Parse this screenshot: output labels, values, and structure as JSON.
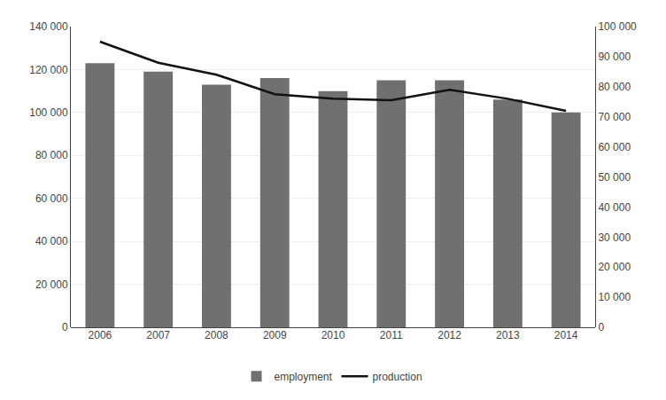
{
  "chart_data": {
    "type": "bar",
    "categories": [
      "2006",
      "2007",
      "2008",
      "2009",
      "2010",
      "2011",
      "2012",
      "2013",
      "2014"
    ],
    "series": [
      {
        "name": "employment",
        "type": "bar",
        "color": "#707070",
        "values": [
          123000,
          119000,
          113000,
          116000,
          110000,
          115000,
          115000,
          106000,
          100000
        ]
      },
      {
        "name": "production",
        "type": "line",
        "color": "#111111",
        "axis": "y2",
        "values": [
          95000,
          88000,
          84000,
          77500,
          76000,
          75500,
          79000,
          76000,
          72000
        ]
      }
    ],
    "ylim": [
      0,
      140000
    ],
    "yticks": [
      0,
      {
        "value": 20000,
        "label": "20 000"
      },
      {
        "value": 40000,
        "label": "40 000"
      },
      {
        "value": 60000,
        "label": "60 000"
      },
      {
        "value": 80000,
        "label": "80 000"
      },
      {
        "value": 100000,
        "label": "100 000"
      },
      {
        "value": 120000,
        "label": "120 000"
      },
      {
        "value": 140000,
        "label": "140 000"
      }
    ],
    "y2lim": [
      0,
      100000
    ],
    "y2ticks": [
      0,
      {
        "value": 10000,
        "label": "10 000"
      },
      {
        "value": 20000,
        "label": "20 000"
      },
      {
        "value": 30000,
        "label": "30 000"
      },
      {
        "value": 40000,
        "label": "40 000"
      },
      {
        "value": 50000,
        "label": "50 000"
      },
      {
        "value": 60000,
        "label": "60 000"
      },
      {
        "value": 70000,
        "label": "70 000"
      },
      {
        "value": 80000,
        "label": "80 000"
      },
      {
        "value": 90000,
        "label": "90 000"
      },
      {
        "value": 100000,
        "label": "100 000"
      }
    ],
    "grid": true,
    "legend": "bottom"
  }
}
